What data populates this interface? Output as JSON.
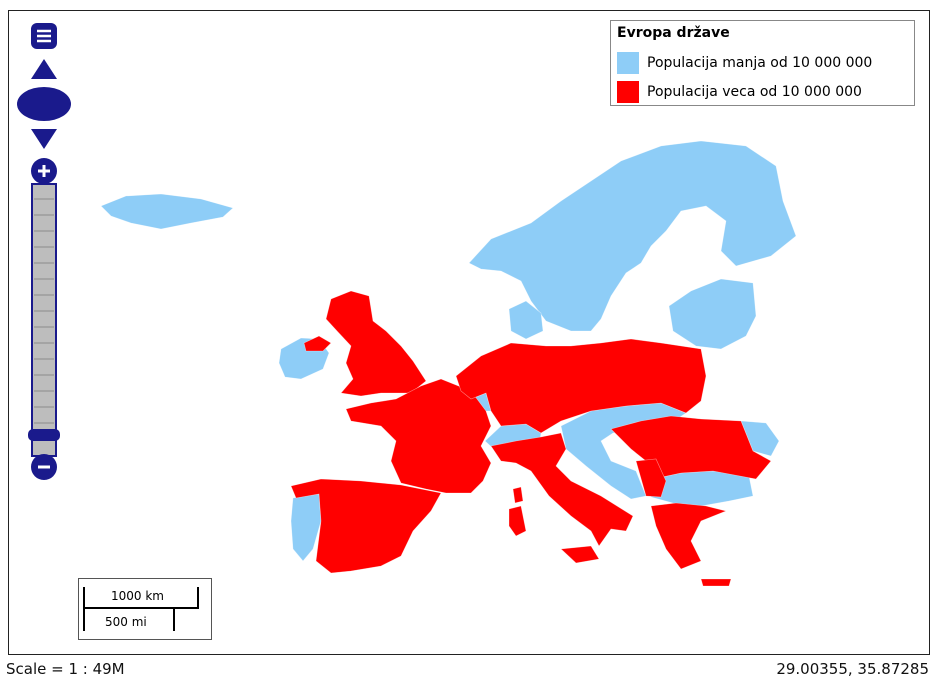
{
  "legend": {
    "title": "Evropa države",
    "items": [
      {
        "label": "Populacija manja od 10 000 000",
        "color": "#8ecdf7"
      },
      {
        "label": "Populacija veca od 10 000 000",
        "color": "#ff0000"
      }
    ]
  },
  "scale_bar": {
    "top": "1000 km",
    "bottom": "500 mi"
  },
  "status": {
    "scale": "Scale = 1 : 49M",
    "coordinates": "29.00355, 35.87285"
  }
}
